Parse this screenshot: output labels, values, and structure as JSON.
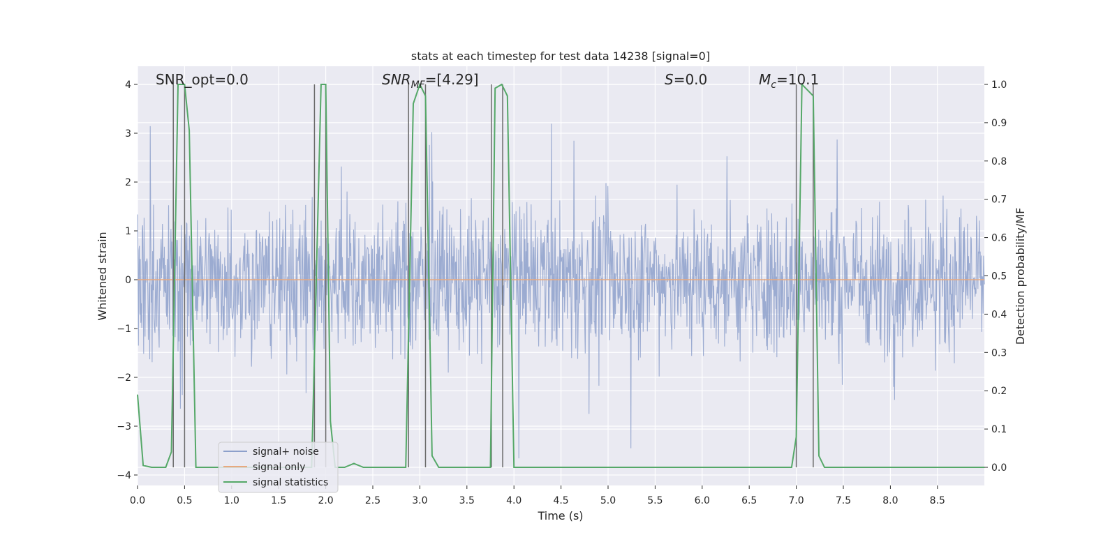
{
  "chart_data": {
    "type": "line",
    "title": "stats at each timestep for test data 14238 [signal=0]",
    "xlabel": "Time (s)",
    "ylabel": "Whitened strain",
    "y2label": "Detection probability/MF",
    "xlim": [
      0.0,
      9.0
    ],
    "ylim": [
      -4.2,
      4.2
    ],
    "y2lim": [
      -0.045,
      1.045
    ],
    "xticks": [
      "0.0",
      "0.5",
      "1.0",
      "1.5",
      "2.0",
      "2.5",
      "3.0",
      "3.5",
      "4.0",
      "4.5",
      "5.0",
      "5.5",
      "6.0",
      "6.5",
      "7.0",
      "7.5",
      "8.0",
      "8.5"
    ],
    "yticks": [
      "−4",
      "−3",
      "−2",
      "−1",
      "0",
      "1",
      "2",
      "3",
      "4"
    ],
    "y2ticks": [
      "0.0",
      "0.1",
      "0.2",
      "0.3",
      "0.4",
      "0.5",
      "0.6",
      "0.7",
      "0.8",
      "0.9",
      "1.0"
    ],
    "grid": true,
    "legend_position": "lower-left",
    "annotations": [
      {
        "text": "SNR_opt=0.0",
        "x": 0.2
      },
      {
        "text": "SNR_MF=[4.29]",
        "x": 2.6,
        "rich": "SNRMF"
      },
      {
        "text": "S=0.0",
        "x": 5.6,
        "rich": "S"
      },
      {
        "text": "M_c=10.1",
        "x": 6.6,
        "rich": "Mc"
      }
    ],
    "series": [
      {
        "name": "signal+ noise",
        "color": "#8da0cb",
        "axis": "left",
        "kind": "noise",
        "envelope": 2.5
      },
      {
        "name": "signal only",
        "color": "#e8a97f",
        "axis": "left",
        "y": 0.0
      },
      {
        "name": "signal statistics",
        "color": "#55a868",
        "axis": "right",
        "x": [
          0.0,
          0.06,
          0.15,
          0.3,
          0.36,
          0.43,
          0.5,
          0.55,
          0.62,
          0.82,
          1.0,
          1.5,
          1.6,
          1.85,
          1.95,
          2.0,
          2.05,
          2.1,
          2.2,
          2.3,
          2.4,
          2.85,
          2.93,
          3.0,
          3.06,
          3.13,
          3.2,
          3.75,
          3.8,
          3.87,
          3.93,
          4.0,
          4.5,
          5.0,
          6.0,
          6.95,
          7.0,
          7.06,
          7.18,
          7.24,
          7.3,
          8.0,
          9.0
        ],
        "y": [
          0.19,
          0.005,
          0.0,
          0.0,
          0.04,
          1.0,
          1.0,
          0.88,
          0.0,
          0.0,
          0.0,
          0.0,
          0.0,
          0.0,
          1.0,
          1.0,
          0.12,
          0.0,
          0.0,
          0.01,
          0.0,
          0.0,
          0.95,
          1.0,
          0.97,
          0.03,
          0.0,
          0.0,
          0.99,
          1.0,
          0.97,
          0.0,
          0.0,
          0.0,
          0.0,
          0.0,
          0.08,
          1.0,
          0.97,
          0.03,
          0.0,
          0.0,
          0.0
        ]
      },
      {
        "name": "",
        "color": "#6b6b6b",
        "axis": "right",
        "kind": "vlines",
        "x": [
          0.38,
          0.5,
          1.88,
          2.0,
          2.88,
          3.06,
          3.76,
          3.88,
          7.0,
          7.18
        ]
      }
    ]
  }
}
